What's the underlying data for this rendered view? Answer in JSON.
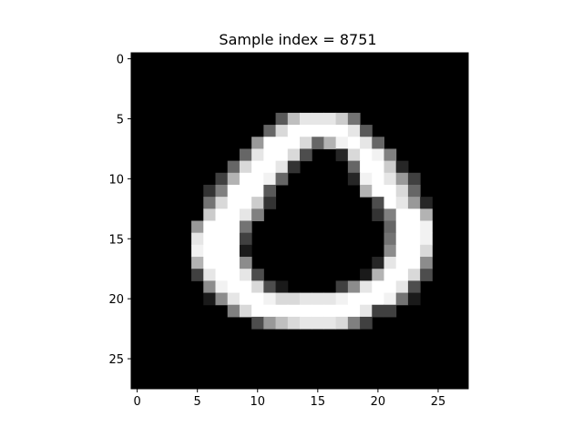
{
  "chart_data": {
    "type": "heatmap",
    "title": "Sample index = 8751",
    "xlabel": "",
    "ylabel": "",
    "colormap": "gray",
    "value_range": [
      0,
      1
    ],
    "rows": 28,
    "cols": 28,
    "x_ticks": [
      "0",
      "5",
      "10",
      "15",
      "20",
      "25"
    ],
    "y_ticks": [
      "0",
      "5",
      "10",
      "15",
      "20",
      "25"
    ],
    "x_tick_values": [
      0,
      5,
      10,
      15,
      20,
      25
    ],
    "y_tick_values": [
      0,
      5,
      10,
      15,
      20,
      25
    ],
    "pixels": [
      [
        5,
        12,
        0.35
      ],
      [
        5,
        13,
        0.75
      ],
      [
        5,
        14,
        0.9
      ],
      [
        5,
        15,
        0.9
      ],
      [
        5,
        16,
        0.9
      ],
      [
        5,
        17,
        0.8
      ],
      [
        5,
        18,
        0.45
      ],
      [
        6,
        11,
        0.4
      ],
      [
        6,
        12,
        0.85
      ],
      [
        6,
        13,
        1
      ],
      [
        6,
        14,
        1
      ],
      [
        6,
        15,
        1
      ],
      [
        6,
        16,
        1
      ],
      [
        6,
        17,
        1
      ],
      [
        6,
        18,
        0.9
      ],
      [
        6,
        19,
        0.35
      ],
      [
        7,
        10,
        0.6
      ],
      [
        7,
        11,
        1
      ],
      [
        7,
        12,
        1
      ],
      [
        7,
        13,
        1
      ],
      [
        7,
        14,
        0.85
      ],
      [
        7,
        15,
        0.4
      ],
      [
        7,
        16,
        0.7
      ],
      [
        7,
        17,
        0.95
      ],
      [
        7,
        18,
        1
      ],
      [
        7,
        19,
        0.9
      ],
      [
        7,
        20,
        0.4
      ],
      [
        8,
        9,
        0.4
      ],
      [
        8,
        10,
        0.9
      ],
      [
        8,
        11,
        1
      ],
      [
        8,
        12,
        1
      ],
      [
        8,
        13,
        0.85
      ],
      [
        8,
        14,
        0.3
      ],
      [
        8,
        17,
        0.15
      ],
      [
        8,
        18,
        0.85
      ],
      [
        8,
        19,
        1
      ],
      [
        8,
        20,
        0.95
      ],
      [
        8,
        21,
        0.5
      ],
      [
        9,
        8,
        0.4
      ],
      [
        9,
        9,
        0.85
      ],
      [
        9,
        10,
        1
      ],
      [
        9,
        11,
        1
      ],
      [
        9,
        12,
        0.9
      ],
      [
        9,
        13,
        0.2
      ],
      [
        9,
        18,
        0.4
      ],
      [
        9,
        19,
        1
      ],
      [
        9,
        20,
        1
      ],
      [
        9,
        21,
        0.8
      ],
      [
        9,
        22,
        0.15
      ],
      [
        10,
        7,
        0.25
      ],
      [
        10,
        8,
        0.7
      ],
      [
        10,
        9,
        1
      ],
      [
        10,
        10,
        1
      ],
      [
        10,
        11,
        0.95
      ],
      [
        10,
        12,
        0.4
      ],
      [
        10,
        18,
        0.15
      ],
      [
        10,
        19,
        0.95
      ],
      [
        10,
        20,
        1
      ],
      [
        10,
        21,
        0.9
      ],
      [
        10,
        22,
        0.6
      ],
      [
        10,
        23,
        0.25
      ],
      [
        11,
        6,
        0.2
      ],
      [
        11,
        7,
        0.5
      ],
      [
        11,
        8,
        1
      ],
      [
        11,
        9,
        1
      ],
      [
        11,
        10,
        1
      ],
      [
        11,
        11,
        0.35
      ],
      [
        11,
        19,
        0.7
      ],
      [
        11,
        20,
        1
      ],
      [
        11,
        21,
        1
      ],
      [
        11,
        22,
        0.85
      ],
      [
        11,
        23,
        0.4
      ],
      [
        12,
        6,
        0.45
      ],
      [
        12,
        7,
        0.85
      ],
      [
        12,
        8,
        1
      ],
      [
        12,
        9,
        1
      ],
      [
        12,
        10,
        0.8
      ],
      [
        12,
        11,
        0.2
      ],
      [
        12,
        20,
        0.3
      ],
      [
        12,
        21,
        1
      ],
      [
        12,
        22,
        0.9
      ],
      [
        12,
        23,
        0.6
      ],
      [
        12,
        24,
        0.15
      ],
      [
        13,
        6,
        0.8
      ],
      [
        13,
        7,
        1
      ],
      [
        13,
        8,
        1
      ],
      [
        13,
        9,
        0.9
      ],
      [
        13,
        10,
        0.5
      ],
      [
        13,
        20,
        0.2
      ],
      [
        13,
        21,
        0.5
      ],
      [
        13,
        22,
        1
      ],
      [
        13,
        23,
        1
      ],
      [
        13,
        24,
        0.7
      ],
      [
        14,
        5,
        0.6
      ],
      [
        14,
        6,
        1
      ],
      [
        14,
        7,
        1
      ],
      [
        14,
        8,
        1
      ],
      [
        14,
        9,
        0.45
      ],
      [
        14,
        21,
        0.4
      ],
      [
        14,
        22,
        1
      ],
      [
        14,
        23,
        1
      ],
      [
        14,
        24,
        0.95
      ],
      [
        15,
        5,
        0.9
      ],
      [
        15,
        6,
        1
      ],
      [
        15,
        7,
        1
      ],
      [
        15,
        8,
        1
      ],
      [
        15,
        9,
        0.25
      ],
      [
        15,
        21,
        0.45
      ],
      [
        15,
        22,
        1
      ],
      [
        15,
        23,
        1
      ],
      [
        15,
        24,
        0.95
      ],
      [
        16,
        5,
        0.95
      ],
      [
        16,
        6,
        1
      ],
      [
        16,
        7,
        1
      ],
      [
        16,
        8,
        1
      ],
      [
        16,
        9,
        0.1
      ],
      [
        16,
        21,
        0.55
      ],
      [
        16,
        22,
        1
      ],
      [
        16,
        23,
        1
      ],
      [
        16,
        24,
        0.85
      ],
      [
        17,
        5,
        0.7
      ],
      [
        17,
        6,
        1
      ],
      [
        17,
        7,
        1
      ],
      [
        17,
        8,
        1
      ],
      [
        17,
        9,
        0.55
      ],
      [
        17,
        20,
        0.15
      ],
      [
        17,
        21,
        0.9
      ],
      [
        17,
        22,
        1
      ],
      [
        17,
        23,
        1
      ],
      [
        17,
        24,
        0.55
      ],
      [
        18,
        5,
        0.25
      ],
      [
        18,
        6,
        0.9
      ],
      [
        18,
        7,
        1
      ],
      [
        18,
        8,
        1
      ],
      [
        18,
        9,
        0.9
      ],
      [
        18,
        10,
        0.3
      ],
      [
        18,
        19,
        0.1
      ],
      [
        18,
        20,
        0.7
      ],
      [
        18,
        21,
        1
      ],
      [
        18,
        22,
        1
      ],
      [
        18,
        23,
        0.85
      ],
      [
        18,
        24,
        0.3
      ],
      [
        19,
        6,
        0.55
      ],
      [
        19,
        7,
        0.95
      ],
      [
        19,
        8,
        1
      ],
      [
        19,
        9,
        1
      ],
      [
        19,
        10,
        0.85
      ],
      [
        19,
        11,
        0.3
      ],
      [
        19,
        12,
        0.1
      ],
      [
        19,
        17,
        0.25
      ],
      [
        19,
        18,
        0.55
      ],
      [
        19,
        19,
        0.9
      ],
      [
        19,
        20,
        1
      ],
      [
        19,
        21,
        1
      ],
      [
        19,
        22,
        0.9
      ],
      [
        19,
        23,
        0.3
      ],
      [
        20,
        6,
        0.1
      ],
      [
        20,
        7,
        0.55
      ],
      [
        20,
        8,
        0.9
      ],
      [
        20,
        9,
        1
      ],
      [
        20,
        10,
        1
      ],
      [
        20,
        11,
        0.95
      ],
      [
        20,
        12,
        0.85
      ],
      [
        20,
        13,
        0.85
      ],
      [
        20,
        14,
        0.9
      ],
      [
        20,
        15,
        0.9
      ],
      [
        20,
        16,
        0.9
      ],
      [
        20,
        17,
        0.95
      ],
      [
        20,
        18,
        1
      ],
      [
        20,
        19,
        1
      ],
      [
        20,
        20,
        1
      ],
      [
        20,
        21,
        0.95
      ],
      [
        20,
        22,
        0.45
      ],
      [
        20,
        23,
        0.1
      ],
      [
        21,
        8,
        0.5
      ],
      [
        21,
        9,
        0.85
      ],
      [
        21,
        10,
        1
      ],
      [
        21,
        11,
        1
      ],
      [
        21,
        12,
        1
      ],
      [
        21,
        13,
        1
      ],
      [
        21,
        14,
        1
      ],
      [
        21,
        15,
        1
      ],
      [
        21,
        16,
        1
      ],
      [
        21,
        17,
        1
      ],
      [
        21,
        18,
        1
      ],
      [
        21,
        19,
        0.9
      ],
      [
        21,
        20,
        0.25
      ],
      [
        21,
        21,
        0.25
      ],
      [
        22,
        10,
        0.3
      ],
      [
        22,
        11,
        0.6
      ],
      [
        22,
        12,
        0.75
      ],
      [
        22,
        13,
        0.85
      ],
      [
        22,
        14,
        0.9
      ],
      [
        22,
        15,
        0.9
      ],
      [
        22,
        16,
        0.9
      ],
      [
        22,
        17,
        0.85
      ],
      [
        22,
        18,
        0.5
      ],
      [
        22,
        19,
        0.25
      ]
    ]
  }
}
